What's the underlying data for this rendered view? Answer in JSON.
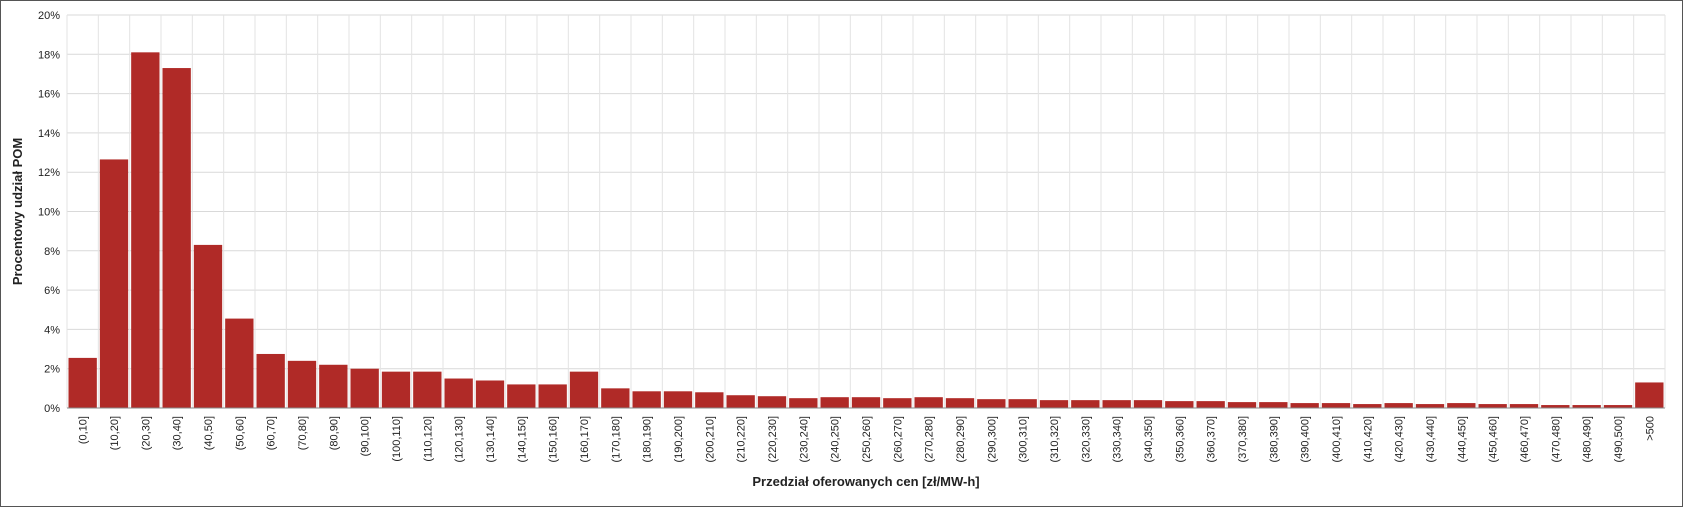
{
  "chart_data": {
    "type": "bar",
    "xlabel": "Przedział oferowanych cen [zł/MW-h]",
    "ylabel": "Procentowy udział POM",
    "ylim": [
      0,
      20
    ],
    "y_ticks": [
      "0%",
      "2%",
      "4%",
      "6%",
      "8%",
      "10%",
      "12%",
      "14%",
      "16%",
      "18%",
      "20%"
    ],
    "y_tick_values": [
      0,
      2,
      4,
      6,
      8,
      10,
      12,
      14,
      16,
      18,
      20
    ],
    "grid": true,
    "bar_color": "#b02a27",
    "categories": [
      "(0,10]",
      "(10,20]",
      "(20,30]",
      "(30,40]",
      "(40,50]",
      "(50,60]",
      "(60,70]",
      "(70,80]",
      "(80,90]",
      "(90,100]",
      "(100,110]",
      "(110,120]",
      "(120,130]",
      "(130,140]",
      "(140,150]",
      "(150,160]",
      "(160,170]",
      "(170,180]",
      "(180,190]",
      "(190,200]",
      "(200,210]",
      "(210,220]",
      "(220,230]",
      "(230,240]",
      "(240,250]",
      "(250,260]",
      "(260,270]",
      "(270,280]",
      "(280,290]",
      "(290,300]",
      "(300,310]",
      "(310,320]",
      "(320,330]",
      "(330,340]",
      "(340,350]",
      "(350,360]",
      "(360,370]",
      "(370,380]",
      "(380,390]",
      "(390,400]",
      "(400,410]",
      "(410,420]",
      "(420,430]",
      "(430,440]",
      "(440,450]",
      "(450,460]",
      "(460,470]",
      "(470,480]",
      "(480,490]",
      "(490,500]",
      ">500"
    ],
    "values": [
      2.55,
      12.65,
      18.1,
      17.3,
      8.3,
      4.55,
      2.75,
      2.4,
      2.2,
      2.0,
      1.85,
      1.85,
      1.5,
      1.4,
      1.2,
      1.2,
      1.85,
      1.0,
      0.85,
      0.85,
      0.8,
      0.65,
      0.6,
      0.5,
      0.55,
      0.55,
      0.5,
      0.55,
      0.5,
      0.45,
      0.45,
      0.4,
      0.4,
      0.4,
      0.4,
      0.35,
      0.35,
      0.3,
      0.3,
      0.25,
      0.25,
      0.2,
      0.25,
      0.2,
      0.25,
      0.2,
      0.2,
      0.15,
      0.15,
      0.15,
      1.3
    ]
  }
}
